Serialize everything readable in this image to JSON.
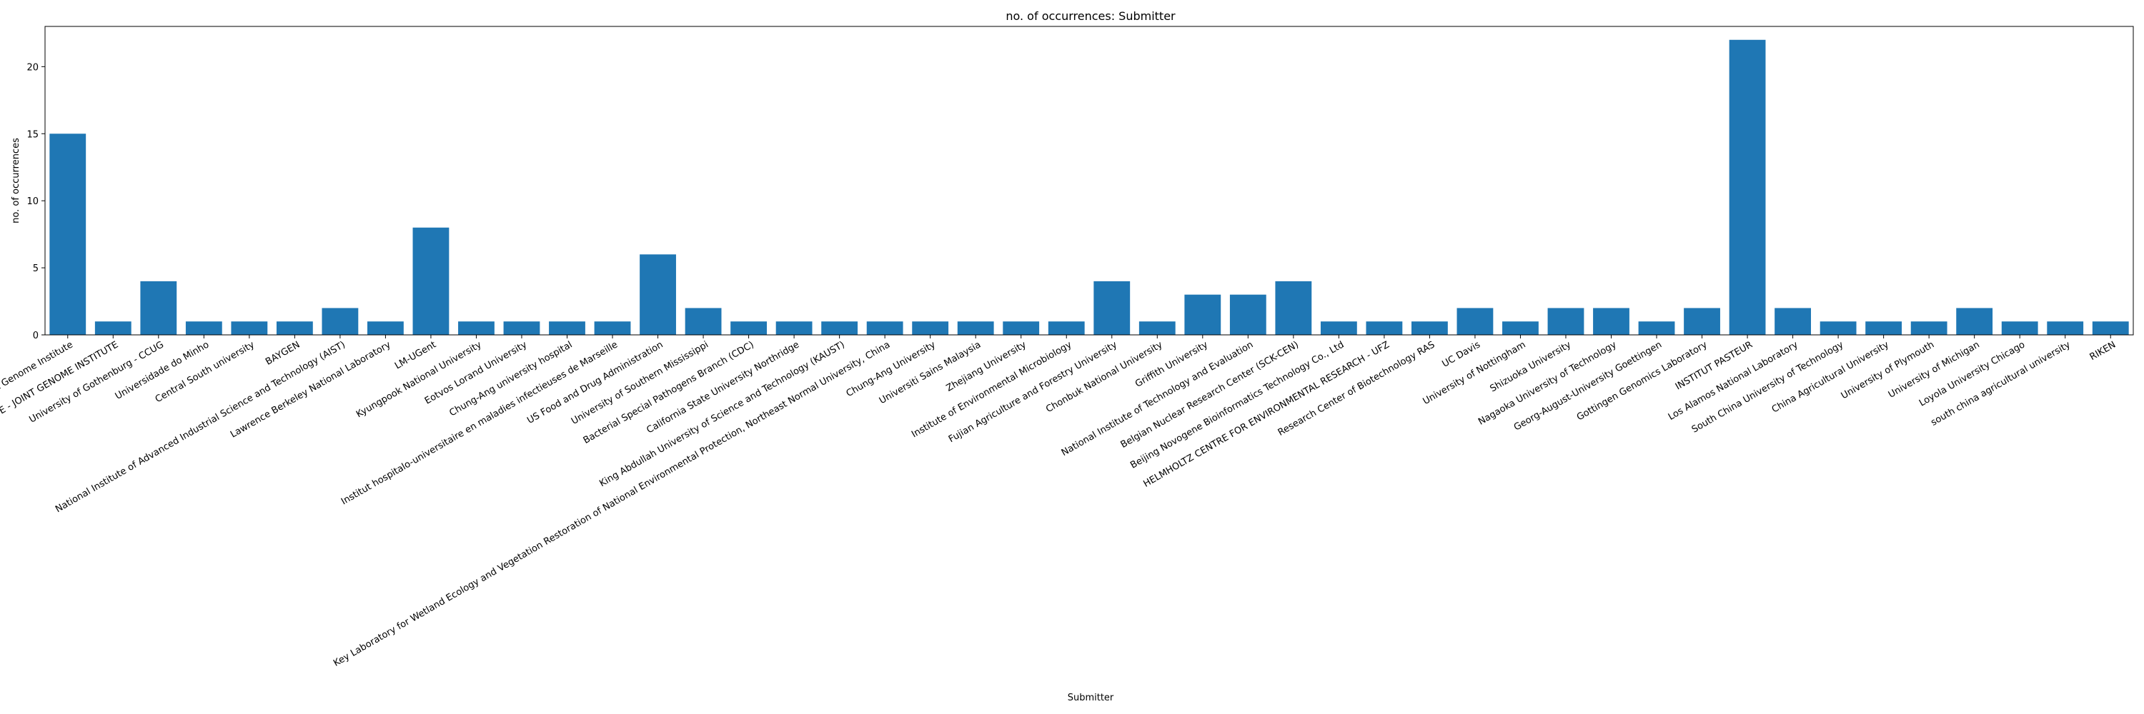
{
  "chart_data": {
    "type": "bar",
    "title": "no. of occurrences: Submitter",
    "xlabel": "Submitter",
    "ylabel": "no. of occurrences",
    "ylim": [
      0,
      23
    ],
    "yticks": [
      0,
      5,
      10,
      15,
      20
    ],
    "grid": false,
    "bar_color": "#1f77b4",
    "categories": [
      "DOE Joint Genome Institute",
      "DOE - JOINT GENOME INSTITUTE",
      "University of Gothenburg - CCUG",
      "Universidade do Minho",
      "Central South university",
      "BAYGEN",
      "National Institute of Advanced Industrial Science and Technology (AIST)",
      "Lawrence Berkeley National Laboratory",
      "LM-UGent",
      "Kyungpook National University",
      "Eotvos Lorand University",
      "Chung-Ang university hospital",
      "Institut hospitalo-universitaire en maladies infectieuses de Marseille",
      "US Food and Drug Administration",
      "University of Southern Mississippi",
      "Bacterial Special Pathogens Branch (CDC)",
      "California State University Northridge",
      "King Abdullah University of Science and Technology (KAUST)",
      "Key Laboratory for Wetland Ecology and Vegetation Restoration of National Environmental Protection, Northeast Normal University, China",
      "Chung-Ang University",
      "Universiti Sains Malaysia",
      "Zhejiang University",
      "Institute of Environmental Microbiology",
      "Fujian Agriculture and Forestry University",
      "Chonbuk National University",
      "Griffith University",
      "National Institute of Technology and Evaluation",
      "Belgian Nuclear Research Center (SCK-CEN)",
      "Beijing Novogene Bioinformatics Technology Co., Ltd",
      "HELMHOLTZ CENTRE FOR ENVIRONMENTAL RESEARCH - UFZ",
      "Research Center of Biotechnology RAS",
      "UC Davis",
      "University of Nottingham",
      "Shizuoka University",
      "Nagaoka University of Technology",
      "Georg-August-University Goettingen",
      "Gottingen Genomics Laboratory",
      "INSTITUT PASTEUR",
      "Los Alamos National Laboratory",
      "South China University of Technology",
      "China Agricultural University",
      "University of Plymouth",
      "University of Michigan",
      "Loyola University Chicago",
      "south china agricultural university",
      "RIKEN"
    ],
    "values": [
      15,
      1,
      4,
      1,
      1,
      1,
      2,
      1,
      8,
      1,
      1,
      1,
      1,
      6,
      2,
      1,
      1,
      1,
      1,
      1,
      1,
      1,
      1,
      4,
      1,
      3,
      3,
      4,
      1,
      1,
      1,
      2,
      1,
      2,
      2,
      1,
      2,
      22,
      2,
      1,
      1,
      1,
      2,
      1,
      1,
      1
    ]
  }
}
